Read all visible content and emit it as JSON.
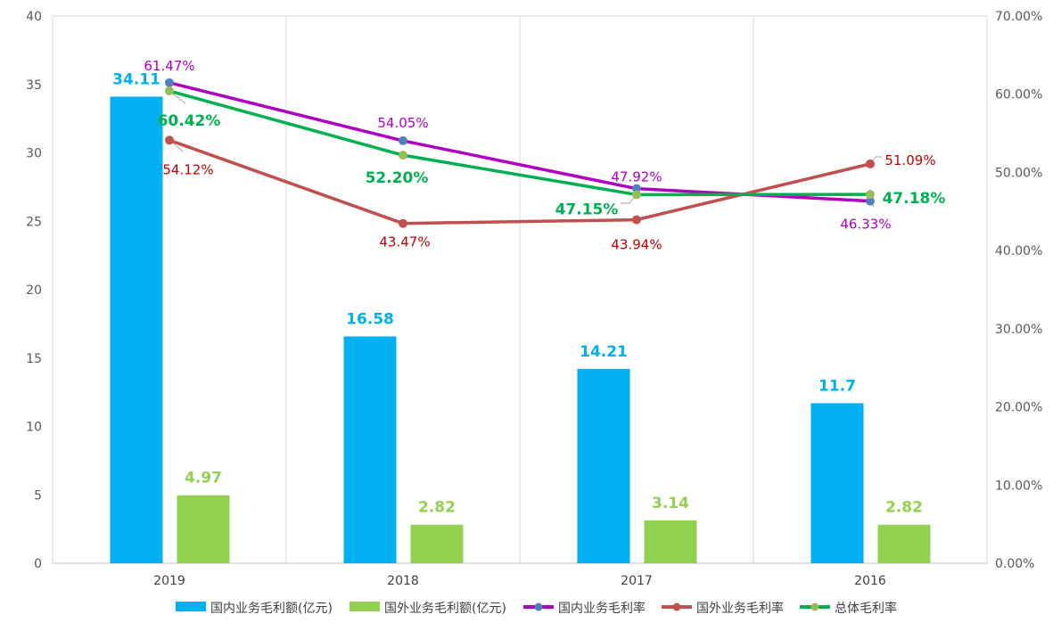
{
  "chart_data": {
    "type": "bar+line",
    "categories": [
      "2019",
      "2018",
      "2017",
      "2016"
    ],
    "left_axis": {
      "min": 0,
      "max": 40,
      "ticks": [
        "0",
        "5",
        "10",
        "15",
        "20",
        "25",
        "30",
        "35",
        "40"
      ]
    },
    "right_axis": {
      "min": 0,
      "max": 70,
      "ticks": [
        "0.00%",
        "10.00%",
        "20.00%",
        "30.00%",
        "40.00%",
        "50.00%",
        "60.00%",
        "70.00%"
      ]
    },
    "grid": "vertical",
    "legend_position": "bottom",
    "bar_series": [
      {
        "name": "国内业务毛利额(亿元)",
        "values": [
          34.11,
          16.58,
          14.21,
          11.7
        ],
        "labels": [
          "34.11",
          "16.58",
          "14.21",
          "11.7"
        ],
        "color": "#00B0F0"
      },
      {
        "name": "国外业务毛利额(亿元)",
        "values": [
          4.97,
          2.82,
          3.14,
          2.82
        ],
        "labels": [
          "4.97",
          "2.82",
          "3.14",
          "2.82"
        ],
        "color": "#92D050"
      }
    ],
    "line_series": [
      {
        "name": "国内业务毛利率",
        "values": [
          61.47,
          54.05,
          47.92,
          46.33
        ],
        "labels": [
          "61.47%",
          "54.05%",
          "47.92%",
          "46.33%"
        ],
        "color": "#B000C0",
        "marker": "#4F81BD",
        "label_color": "#B000C0"
      },
      {
        "name": "国外业务毛利率",
        "values": [
          54.12,
          43.47,
          43.94,
          51.09
        ],
        "labels": [
          "54.12%",
          "43.47%",
          "43.94%",
          "51.09%"
        ],
        "color": "#C0504D",
        "marker": "#C0504D",
        "label_color": "#C00000"
      },
      {
        "name": "总体毛利率",
        "values": [
          60.42,
          52.2,
          47.15,
          47.18
        ],
        "labels": [
          "60.42%",
          "52.20%",
          "47.15%",
          "47.18%"
        ],
        "color": "#00B050",
        "marker": "#9BBB59",
        "label_color": "#00B050"
      }
    ]
  }
}
